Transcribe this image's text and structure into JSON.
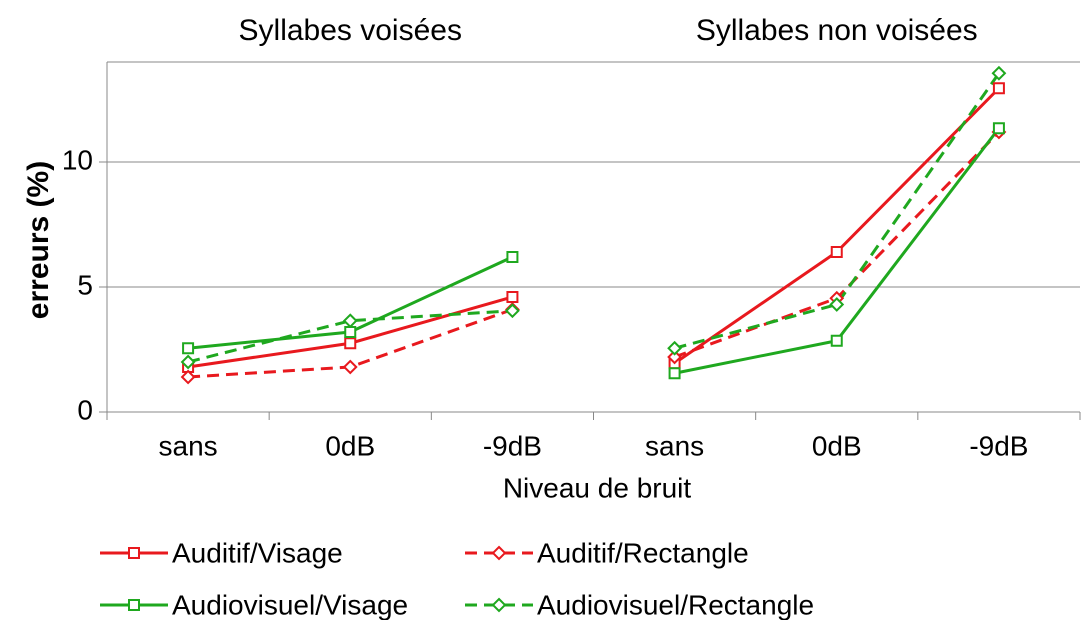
{
  "chart_data": {
    "type": "line",
    "ylabel": "erreurs (%)",
    "xlabel": "Niveau de bruit",
    "ylim": [
      0,
      14
    ],
    "yticks": [
      0,
      5,
      10
    ],
    "grid": true,
    "categories": [
      "sans",
      "0dB",
      "-9dB"
    ],
    "series": [
      {
        "name": "Auditif/Visage",
        "color": "#e8191e",
        "dash": false,
        "marker": "square"
      },
      {
        "name": "Auditif/Rectangle",
        "color": "#e8191e",
        "dash": true,
        "marker": "diamond"
      },
      {
        "name": "Audiovisuel/Visage",
        "color": "#1fa81f",
        "dash": false,
        "marker": "square"
      },
      {
        "name": "Audiovisuel/Rectangle",
        "color": "#1fa81f",
        "dash": true,
        "marker": "diamond"
      }
    ],
    "panels": [
      {
        "title": "Syllabes voisées",
        "series": [
          {
            "values": [
              1.8,
              2.75,
              4.6
            ]
          },
          {
            "values": [
              1.4,
              1.8,
              4.1
            ]
          },
          {
            "values": [
              2.55,
              3.2,
              6.2
            ]
          },
          {
            "values": [
              2.0,
              3.65,
              4.05
            ]
          }
        ]
      },
      {
        "title": "Syllabes non voisées",
        "series": [
          {
            "values": [
              1.95,
              6.4,
              12.95
            ]
          },
          {
            "values": [
              2.2,
              4.55,
              11.2
            ]
          },
          {
            "values": [
              1.55,
              2.85,
              11.35
            ]
          },
          {
            "values": [
              2.55,
              4.3,
              13.55
            ]
          }
        ]
      }
    ]
  }
}
